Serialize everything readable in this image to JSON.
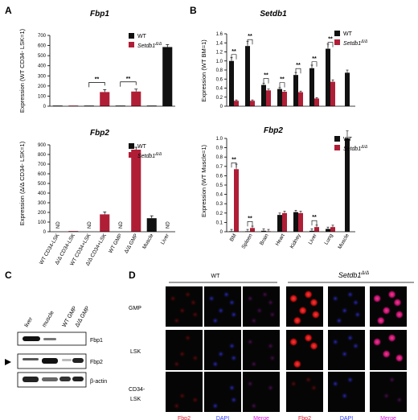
{
  "panels": {
    "A": {
      "label": "A"
    },
    "B": {
      "label": "B"
    },
    "C": {
      "label": "C"
    },
    "D": {
      "label": "D"
    }
  },
  "colors": {
    "wt": "#111111",
    "ko": "#b01e36",
    "fbp2_text": "#e0182c",
    "dapi_text": "#2b3cff",
    "merge_text": "#e01fe0"
  },
  "legend": {
    "wt": "WT",
    "ko_base": "Setdb1",
    "ko_sup": "Δ/Δ"
  },
  "chart_data": [
    {
      "type": "bar",
      "title": "Fbp1",
      "ylabel": "Expression (WT CD34- LSK=1)",
      "ylim": [
        0,
        700
      ],
      "yticks": [
        "0",
        "100",
        "200",
        "300",
        "400",
        "500",
        "600",
        "700"
      ],
      "categories": [
        "WT CD34-LSK",
        "Δ/Δ CD34-LSK",
        "WT CD34+LSK",
        "Δ/Δ CD34+LSK",
        "WT GMP",
        "Δ/Δ GMP",
        "Muscle",
        "Liver"
      ],
      "values": [
        1,
        1,
        1,
        140,
        1,
        145,
        1,
        585
      ],
      "bar_series": [
        "wt",
        "ko",
        "wt",
        "ko",
        "wt",
        "ko",
        "wt",
        "wt"
      ],
      "significance": [
        {
          "pair": [
            2,
            3
          ],
          "label": "**"
        },
        {
          "pair": [
            4,
            5
          ],
          "label": "**"
        }
      ]
    },
    {
      "type": "bar",
      "title": "Fbp2",
      "ylabel": "Expression (Δ/Δ CD34- LSK=1)",
      "ylim": [
        0,
        900
      ],
      "yticks": [
        "0",
        "100",
        "200",
        "300",
        "400",
        "500",
        "600",
        "700",
        "800",
        "900"
      ],
      "categories": [
        "WT CD34-LSK",
        "Δ/Δ CD34-LSK",
        "WT CD34+LSK",
        "Δ/Δ CD34+LSK",
        "WT GMP",
        "Δ/Δ GMP",
        "Muscle",
        "Liver"
      ],
      "values": [
        0,
        1,
        0,
        180,
        0,
        850,
        140,
        0
      ],
      "bar_series": [
        "wt",
        "ko",
        "wt",
        "ko",
        "wt",
        "ko",
        "wt",
        "wt"
      ],
      "nd_label": "ND",
      "nd_indices": [
        0,
        2,
        4,
        7
      ]
    },
    {
      "type": "bar",
      "title": "Setdb1",
      "ylabel": "Expression (WT BM=1)",
      "ylim": [
        0,
        1.6
      ],
      "yticks": [
        "0",
        "0.2",
        "0.4",
        "0.6",
        "0.8",
        "1.0",
        "1.2",
        "1.4",
        "1.6"
      ],
      "categories": [
        "BM",
        "Spleen",
        "Brain",
        "Heart",
        "Kidney",
        "Liver",
        "Lung",
        "Muscle"
      ],
      "series": [
        {
          "key": "wt",
          "values": [
            1.0,
            1.33,
            0.47,
            0.38,
            0.69,
            0.84,
            1.27,
            0.74
          ]
        },
        {
          "key": "ko",
          "values": [
            0.12,
            0.12,
            0.35,
            0.32,
            0.31,
            0.17,
            0.54,
            null
          ]
        }
      ],
      "significance": [
        "**",
        "**",
        "**",
        "**",
        "**",
        "**",
        "**"
      ]
    },
    {
      "type": "bar",
      "title": "Fbp2",
      "ylabel": "Expression (WT Muscle=1)",
      "ylim": [
        0,
        1.0
      ],
      "yticks": [
        "0",
        "0.1",
        "0.2",
        "0.3",
        "0.4",
        "0.5",
        "0.6",
        "0.7",
        "0.8",
        "0.9",
        "1.0"
      ],
      "categories": [
        "BM",
        "Spleen",
        "Brain",
        "Heart",
        "Kidney",
        "Liver",
        "Lung",
        "Muscle"
      ],
      "series": [
        {
          "key": "wt",
          "values": [
            0.0,
            0.0,
            0.01,
            0.18,
            0.21,
            0.01,
            0.03,
            1.0
          ]
        },
        {
          "key": "ko",
          "values": [
            0.67,
            0.04,
            0.0,
            0.2,
            0.2,
            0.05,
            0.05,
            null
          ]
        }
      ],
      "significance": [
        "**",
        "**",
        null,
        null,
        null,
        "**",
        null
      ]
    }
  ],
  "blot": {
    "lanes": [
      "liver",
      "muscle",
      "WT GMP",
      "Δ/Δ GMP"
    ],
    "rows": [
      "Fbp1",
      "Fbp2",
      "β-actin"
    ]
  },
  "micro": {
    "groups": {
      "wt": "WT",
      "ko_base": "Setdb1",
      "ko_sup": "Δ/Δ"
    },
    "rows": [
      "GMP",
      "LSK",
      "CD34-",
      "LSK"
    ],
    "col_labels": [
      "Fbp2",
      "DAPI",
      "Merge",
      "Fbp2",
      "DAPI",
      "Merge"
    ]
  }
}
